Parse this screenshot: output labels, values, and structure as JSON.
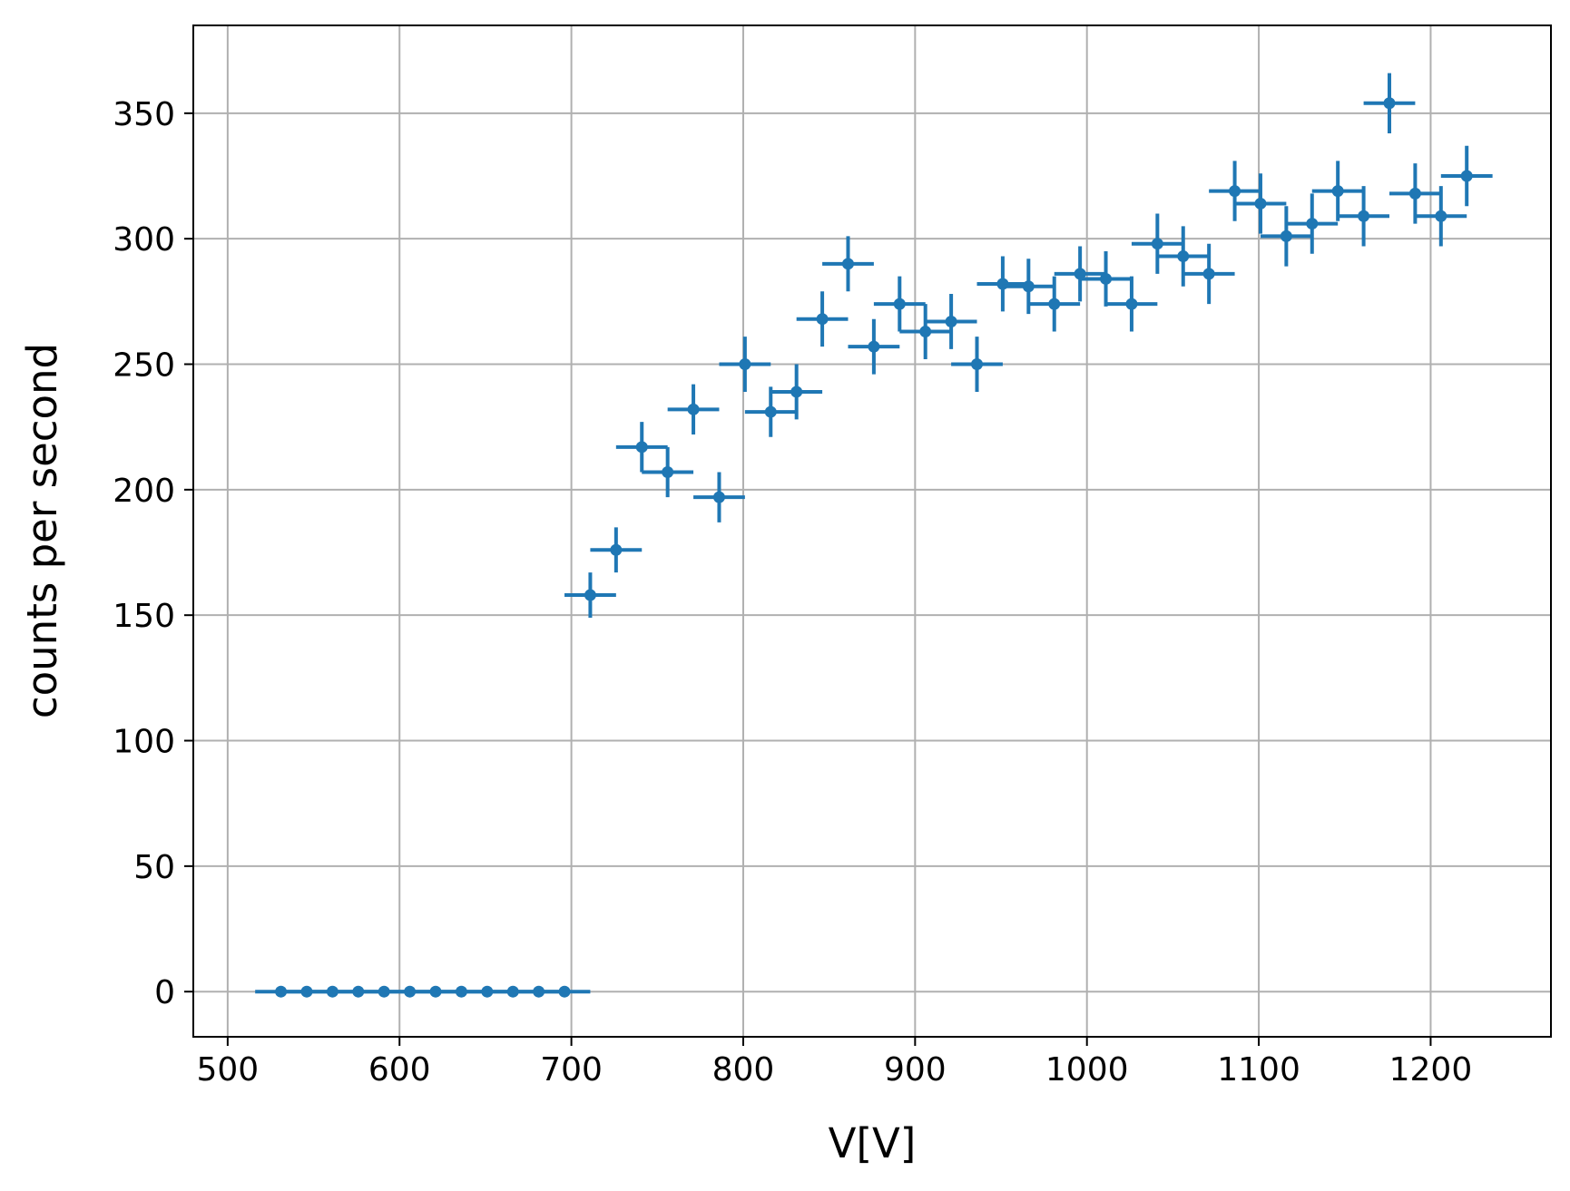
{
  "chart_data": {
    "type": "scatter",
    "title": "",
    "xlabel": "V[V]",
    "ylabel": "counts per second",
    "xlim": [
      480,
      1270
    ],
    "ylim": [
      -18,
      385
    ],
    "xticks": [
      500,
      600,
      700,
      800,
      900,
      1000,
      1100,
      1200
    ],
    "yticks": [
      0,
      50,
      100,
      150,
      200,
      250,
      300,
      350
    ],
    "grid": true,
    "legend": "none",
    "series": [
      {
        "color": "#1f77b4",
        "x": [
          531,
          546,
          561,
          576,
          591,
          606,
          621,
          636,
          651,
          666,
          681,
          696,
          711,
          726,
          741,
          756,
          771,
          786,
          801,
          816,
          831,
          846,
          861,
          876,
          891,
          906,
          921,
          936,
          951,
          966,
          981,
          996,
          1011,
          1026,
          1041,
          1056,
          1071,
          1086,
          1101,
          1116,
          1131,
          1146,
          1161,
          1176,
          1191,
          1206,
          1221
        ],
        "y": [
          0,
          0,
          0,
          0,
          0,
          0,
          0,
          0,
          0,
          0,
          0,
          0,
          158,
          176,
          217,
          207,
          232,
          197,
          250,
          231,
          239,
          268,
          290,
          257,
          274,
          263,
          267,
          250,
          282,
          281,
          274,
          286,
          284,
          274,
          298,
          293,
          286,
          319,
          314,
          301,
          306,
          319,
          309,
          354,
          318,
          309,
          325
        ],
        "xerr": 15,
        "yerr": [
          0,
          0,
          0,
          0,
          0,
          0,
          0,
          0,
          0,
          0,
          0,
          0,
          9,
          9,
          10,
          10,
          10,
          10,
          11,
          10,
          11,
          11,
          11,
          11,
          11,
          11,
          11,
          11,
          11,
          11,
          11,
          11,
          11,
          11,
          12,
          12,
          12,
          12,
          12,
          12,
          12,
          12,
          12,
          12,
          12,
          12,
          12
        ]
      }
    ]
  }
}
